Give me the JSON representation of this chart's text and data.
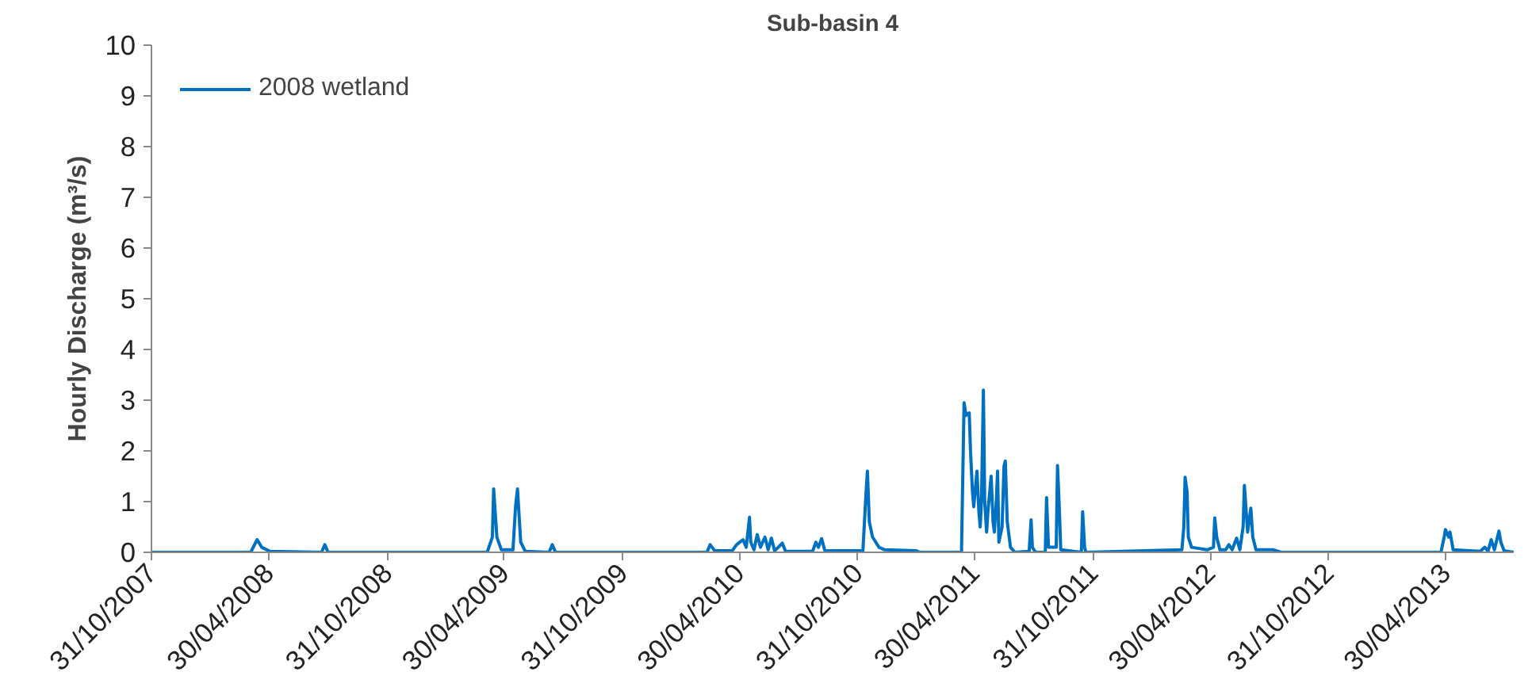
{
  "chart_data": {
    "type": "line",
    "title": "Sub-basin 4",
    "ylabel": "Hourly Discharge (m³/s)",
    "x": [
      "2007-10-31",
      "2008-04-02",
      "2008-04-12",
      "2008-04-19",
      "2008-05-02",
      "2008-07-21",
      "2008-07-26",
      "2008-07-31",
      "2009-04-04",
      "2009-04-12",
      "2009-04-14",
      "2009-04-19",
      "2009-04-26",
      "2009-05-14",
      "2009-05-18",
      "2009-05-21",
      "2009-05-26",
      "2009-06-02",
      "2009-07-09",
      "2009-07-14",
      "2009-07-19",
      "2010-03-11",
      "2010-03-16",
      "2010-03-23",
      "2010-04-19",
      "2010-04-26",
      "2010-05-06",
      "2010-05-11",
      "2010-05-16",
      "2010-05-18",
      "2010-05-23",
      "2010-05-28",
      "2010-06-02",
      "2010-06-09",
      "2010-06-14",
      "2010-06-19",
      "2010-06-24",
      "2010-07-06",
      "2010-07-11",
      "2010-08-22",
      "2010-08-27",
      "2010-08-31",
      "2010-09-05",
      "2010-09-10",
      "2010-11-08",
      "2010-11-13",
      "2010-11-15",
      "2010-11-18",
      "2010-11-23",
      "2010-12-03",
      "2010-12-12",
      "2011-01-30",
      "2011-02-04",
      "2011-04-10",
      "2011-04-12",
      "2011-04-14",
      "2011-04-17",
      "2011-04-22",
      "2011-04-24",
      "2011-04-27",
      "2011-04-29",
      "2011-05-04",
      "2011-05-07",
      "2011-05-09",
      "2011-05-11",
      "2011-05-14",
      "2011-05-16",
      "2011-05-19",
      "2011-05-21",
      "2011-05-26",
      "2011-05-29",
      "2011-05-31",
      "2011-06-03",
      "2011-06-05",
      "2011-06-07",
      "2011-06-12",
      "2011-06-15",
      "2011-06-17",
      "2011-06-20",
      "2011-06-25",
      "2011-07-02",
      "2011-07-24",
      "2011-07-27",
      "2011-07-29",
      "2011-08-03",
      "2011-08-18",
      "2011-08-20",
      "2011-08-23",
      "2011-09-04",
      "2011-09-06",
      "2011-09-09",
      "2011-09-11",
      "2011-10-13",
      "2011-10-15",
      "2011-10-18",
      "2011-10-20",
      "2012-03-17",
      "2012-03-20",
      "2012-03-22",
      "2012-03-25",
      "2012-03-27",
      "2012-04-01",
      "2012-04-25",
      "2012-05-05",
      "2012-05-07",
      "2012-05-10",
      "2012-05-15",
      "2012-05-24",
      "2012-05-29",
      "2012-06-03",
      "2012-06-10",
      "2012-06-15",
      "2012-06-20",
      "2012-06-22",
      "2012-06-27",
      "2012-07-02",
      "2012-07-05",
      "2012-07-10",
      "2012-07-17",
      "2012-08-06",
      "2012-08-18",
      "2013-04-23",
      "2013-04-28",
      "2013-04-30",
      "2013-05-05",
      "2013-05-07",
      "2013-05-12",
      "2013-06-06",
      "2013-06-23",
      "2013-06-30",
      "2013-07-05",
      "2013-07-10",
      "2013-07-15",
      "2013-07-22",
      "2013-07-25",
      "2013-07-30",
      "2013-08-14"
    ],
    "series": [
      {
        "name": "2008 wetland",
        "color": "#0070c0",
        "values": [
          0,
          0,
          0.25,
          0.1,
          0.02,
          0,
          0.15,
          0,
          0,
          0.3,
          1.25,
          0.3,
          0.05,
          0.05,
          0.9,
          1.25,
          0.2,
          0.02,
          0,
          0.15,
          0,
          0,
          0.15,
          0.03,
          0.03,
          0.15,
          0.25,
          0.1,
          0.69,
          0.2,
          0.05,
          0.35,
          0.1,
          0.3,
          0.05,
          0.28,
          0.03,
          0.18,
          0.02,
          0.02,
          0.2,
          0.1,
          0.27,
          0.03,
          0.03,
          1.2,
          1.6,
          0.6,
          0.3,
          0.1,
          0.05,
          0.03,
          0,
          0,
          1.5,
          2.95,
          2.7,
          2.75,
          2.0,
          1.2,
          0.9,
          1.6,
          0.8,
          0.5,
          1.0,
          3.2,
          1.0,
          0.4,
          0.8,
          1.5,
          0.6,
          0.4,
          1.0,
          1.6,
          0.2,
          0.5,
          1.7,
          1.8,
          0.6,
          0.1,
          0,
          0.02,
          0.64,
          0.1,
          0,
          0,
          1.08,
          0.1,
          0.1,
          1.71,
          0.8,
          0.05,
          0,
          0.8,
          0.1,
          0,
          0.05,
          0.5,
          1.48,
          1.2,
          0.3,
          0.1,
          0.05,
          0.1,
          0.68,
          0.3,
          0.05,
          0.05,
          0.15,
          0.05,
          0.28,
          0.05,
          0.5,
          1.32,
          0.4,
          0.87,
          0.3,
          0.05,
          0.05,
          0.05,
          0,
          0,
          0.3,
          0.45,
          0.3,
          0.4,
          0.05,
          0.03,
          0.02,
          0.1,
          0.02,
          0.25,
          0.05,
          0.42,
          0.2,
          0.03,
          0
        ]
      }
    ],
    "xlim": [
      "2007-10-31",
      "2013-08-14"
    ],
    "xticks": [
      {
        "value": "2007-10-31",
        "label": "31/10/2007"
      },
      {
        "value": "2008-04-30",
        "label": "30/04/2008"
      },
      {
        "value": "2008-10-31",
        "label": "31/10/2008"
      },
      {
        "value": "2009-04-30",
        "label": "30/04/2009"
      },
      {
        "value": "2009-10-31",
        "label": "31/10/2009"
      },
      {
        "value": "2010-04-30",
        "label": "30/04/2010"
      },
      {
        "value": "2010-10-31",
        "label": "31/10/2010"
      },
      {
        "value": "2011-04-30",
        "label": "30/04/2011"
      },
      {
        "value": "2011-10-31",
        "label": "31/10/2011"
      },
      {
        "value": "2012-04-30",
        "label": "30/04/2012"
      },
      {
        "value": "2012-10-31",
        "label": "31/10/2012"
      },
      {
        "value": "2013-04-30",
        "label": "30/04/2013"
      }
    ],
    "ylim": [
      0,
      10
    ],
    "yticks": [
      0,
      1,
      2,
      3,
      4,
      5,
      6,
      7,
      8,
      9,
      10
    ],
    "grid": false,
    "legend": "top left",
    "marker": "none",
    "line_style": "solid"
  }
}
